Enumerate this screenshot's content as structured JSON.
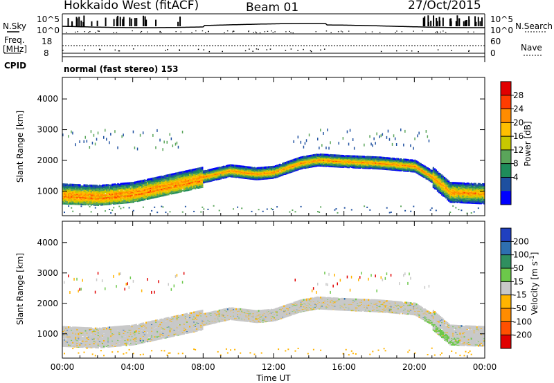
{
  "header": {
    "station": "Hokkaido West (fitACF)",
    "beam": "Beam 01",
    "date": "27/Oct/2015"
  },
  "info_panels": {
    "nsky_label": "N.Sky",
    "nsearch_label": "N.Search",
    "nsky_ticks": [
      "10^5",
      "10^0"
    ],
    "nsearch_ticks": [
      "10^5",
      "10^0"
    ],
    "freq_label_1": "Freq.",
    "freq_label_2": "[MHz]",
    "freq_ticks": [
      "18",
      "8"
    ],
    "nave_label": "Nave",
    "nave_ticks": [
      "60",
      "0"
    ],
    "cpid_label": "CPID",
    "cpid_text": "normal (fast stereo) 153"
  },
  "chart_data": [
    {
      "type": "heatmap",
      "panel": "power",
      "ylabel": "Slant Range [km]",
      "xlabel": "",
      "x_ticks": [
        "00:00",
        "04:00",
        "08:00",
        "12:00",
        "16:00",
        "20:00",
        "00:00"
      ],
      "y_ticks": [
        1000,
        2000,
        3000,
        4000
      ],
      "ylim": [
        200,
        4700
      ],
      "xlim_hours": [
        0,
        24
      ],
      "colorbar": {
        "label": "Power [dB]",
        "ticks": [
          "28",
          "24",
          "20",
          "16",
          "12",
          "8",
          "4"
        ],
        "colors": [
          "#e10000",
          "#ff3c00",
          "#ff8c00",
          "#ffbf00",
          "#c8c800",
          "#5aa55a",
          "#1e8c5a",
          "#1e50a0",
          "#0000ff"
        ]
      },
      "echo_band_hours": [
        0,
        2,
        4,
        6,
        8,
        9.5,
        11,
        12,
        13.5,
        14.5,
        16,
        18,
        20,
        21,
        22,
        24
      ],
      "echo_band_center_km": [
        950,
        900,
        1000,
        1250,
        1500,
        1700,
        1600,
        1650,
        1950,
        2050,
        2000,
        1950,
        1850,
        1500,
        1000,
        950
      ]
    },
    {
      "type": "heatmap",
      "panel": "velocity",
      "ylabel": "Slant Range [km]",
      "xlabel": "Time UT",
      "x_ticks": [
        "00:00",
        "04:00",
        "08:00",
        "12:00",
        "16:00",
        "20:00",
        "00:00"
      ],
      "y_ticks": [
        1000,
        2000,
        3000,
        4000
      ],
      "ylim": [
        200,
        4700
      ],
      "xlim_hours": [
        0,
        24
      ],
      "colorbar": {
        "label": "Velocity [m s^-1]",
        "ticks": [
          "200",
          "100",
          "50",
          "15",
          "-15",
          "-50",
          "-100",
          "-200"
        ],
        "colors": [
          "#2040c0",
          "#2e6fb0",
          "#2f8f5f",
          "#6cc84a",
          "#c8c8c8",
          "#ffb400",
          "#ff8c00",
          "#ff5000",
          "#e00000"
        ]
      }
    }
  ]
}
